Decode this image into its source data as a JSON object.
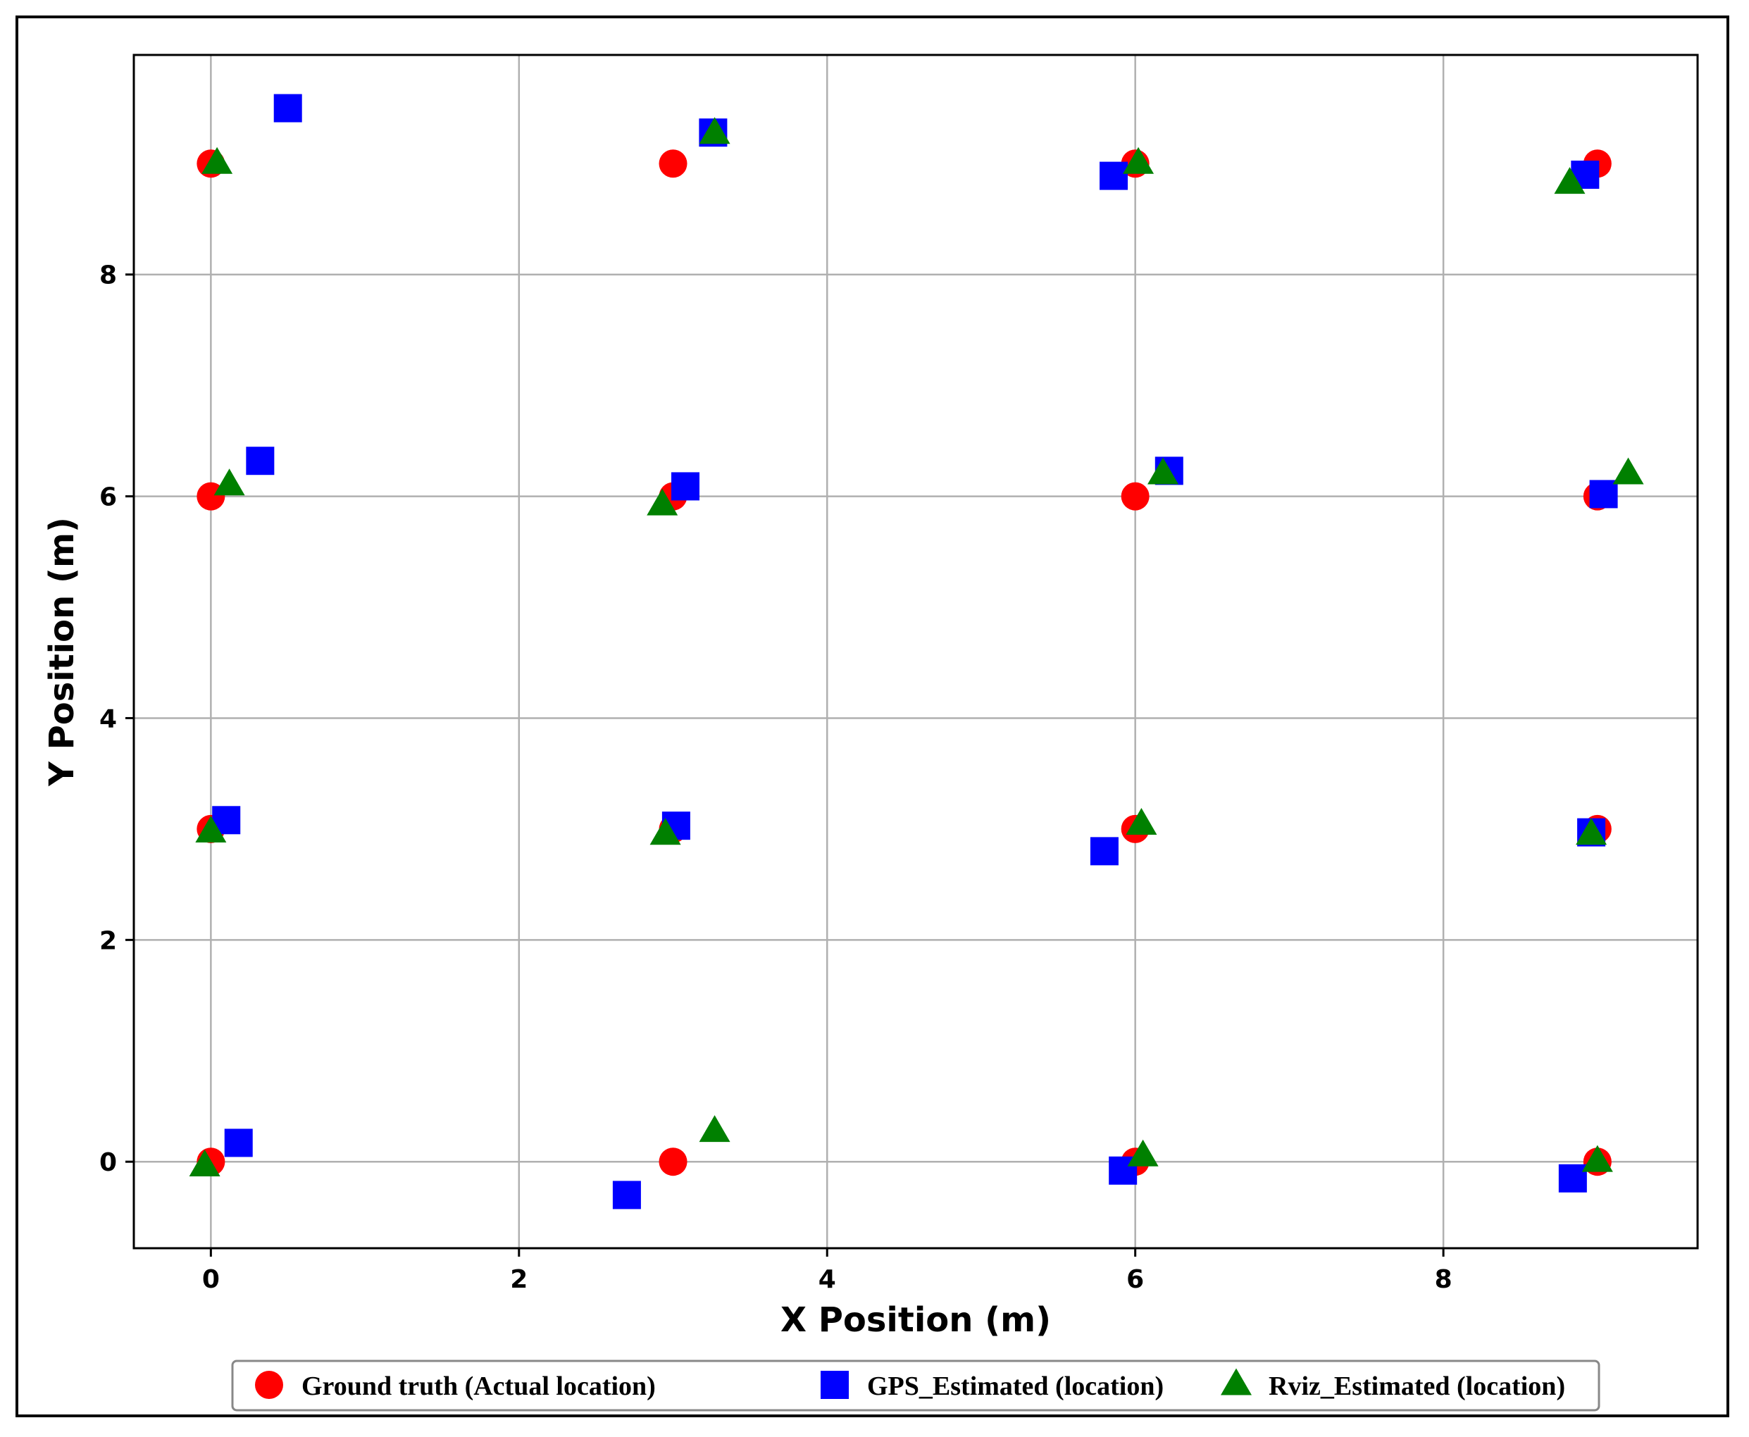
{
  "chart_data": {
    "type": "scatter",
    "title": "",
    "xlabel": "X Position (m)",
    "ylabel": "Y Position (m)",
    "xlim": [
      -0.5,
      9.65
    ],
    "ylim": [
      -0.78,
      9.98
    ],
    "xticks": [
      0,
      2,
      4,
      6,
      8
    ],
    "yticks": [
      0,
      2,
      4,
      6,
      8
    ],
    "grid": true,
    "legend_position": "bottom-center",
    "series": [
      {
        "name": "Ground truth (Actual location)",
        "marker": "circle",
        "color": "#ff0000",
        "points": [
          [
            0,
            9
          ],
          [
            3,
            9
          ],
          [
            6,
            9
          ],
          [
            9,
            9
          ],
          [
            0,
            6
          ],
          [
            3,
            6
          ],
          [
            6,
            6
          ],
          [
            9,
            6
          ],
          [
            0,
            3
          ],
          [
            3,
            3
          ],
          [
            6,
            3
          ],
          [
            9,
            3
          ],
          [
            0,
            0
          ],
          [
            3,
            0
          ],
          [
            6,
            0
          ],
          [
            9,
            0
          ]
        ]
      },
      {
        "name": "GPS_Estimated (location)",
        "marker": "square",
        "color": "#0000ff",
        "points": [
          [
            0.5,
            9.5
          ],
          [
            3.26,
            9.28
          ],
          [
            5.86,
            8.89
          ],
          [
            8.92,
            8.9
          ],
          [
            0.32,
            6.32
          ],
          [
            3.08,
            6.09
          ],
          [
            6.22,
            6.23
          ],
          [
            9.04,
            6.02
          ],
          [
            0.1,
            3.08
          ],
          [
            3.02,
            3.03
          ],
          [
            5.8,
            2.8
          ],
          [
            8.96,
            2.97
          ],
          [
            0.18,
            0.17
          ],
          [
            2.7,
            -0.3
          ],
          [
            5.92,
            -0.08
          ],
          [
            8.84,
            -0.15
          ]
        ]
      },
      {
        "name": "Rviz_Estimated (location)",
        "marker": "triangle",
        "color": "#008000",
        "points": [
          [
            0.04,
            9.0
          ],
          [
            3.27,
            9.27
          ],
          [
            6.02,
            9.0
          ],
          [
            8.82,
            8.82
          ],
          [
            0.12,
            6.1
          ],
          [
            2.93,
            5.92
          ],
          [
            6.18,
            6.2
          ],
          [
            9.2,
            6.2
          ],
          [
            0.0,
            2.97
          ],
          [
            2.95,
            2.95
          ],
          [
            6.04,
            3.04
          ],
          [
            8.96,
            2.95
          ],
          [
            -0.04,
            -0.04
          ],
          [
            3.27,
            0.27
          ],
          [
            6.05,
            0.05
          ],
          [
            9.0,
            0.0
          ]
        ]
      }
    ]
  }
}
